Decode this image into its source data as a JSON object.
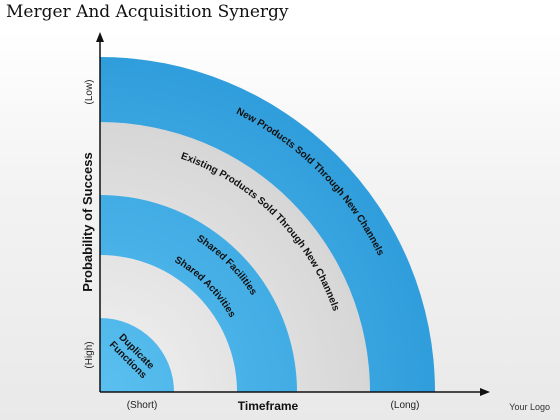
{
  "title": "Merger And Acquisition Synergy",
  "logo": "Your Logo",
  "axes": {
    "y_label": "Probability of Success",
    "y_top": "(Low)",
    "y_bottom": "(High)",
    "x_label": "Timeframe",
    "x_left": "(Short)",
    "x_right": "(Long)"
  },
  "bands": [
    {
      "label": "Duplicate Functions",
      "line1": "Duplicate",
      "line2": "Functions",
      "color": "#3fa9e3"
    },
    {
      "label": "Shared Activities",
      "color": "#dcdcdc"
    },
    {
      "label": "Shared Facilities",
      "color": "#3fa9e3"
    },
    {
      "label": "Existing Products Sold Through New Channels",
      "color": "#dcdcdc"
    },
    {
      "label": "New Products Sold Through New Channels",
      "color": "#3fa9e3"
    }
  ]
}
